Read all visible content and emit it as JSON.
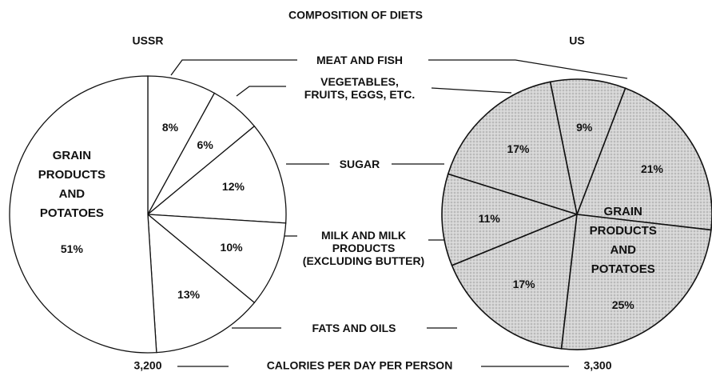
{
  "chart_data": {
    "type": "pie",
    "title": "COMPOSITION OF DIETS",
    "categories": [
      "MEAT AND FISH",
      "VEGETABLES, FRUITS, EGGS, ETC.",
      "SUGAR",
      "MILK AND MILK PRODUCTS (EXCLUDING BUTTER)",
      "FATS AND OILS",
      "GRAIN PRODUCTS AND POTATOES"
    ],
    "series": [
      {
        "name": "USSR",
        "color": "#ffffff",
        "values": [
          8,
          6,
          12,
          10,
          13,
          51
        ],
        "value_labels": [
          "8%",
          "6%",
          "12%",
          "10%",
          "13%",
          "51%"
        ],
        "total": {
          "value": 3200,
          "label": "3,200"
        }
      },
      {
        "name": "US",
        "color": "#cfcfcf",
        "values": [
          21,
          9,
          17,
          11,
          17,
          25
        ],
        "value_labels": [
          "21%",
          "9%",
          "17%",
          "11%",
          "17%",
          "25%"
        ],
        "total": {
          "value": 3300,
          "label": "3,300"
        }
      }
    ],
    "total_label": "CALORIES PER DAY PER PERSON"
  }
}
